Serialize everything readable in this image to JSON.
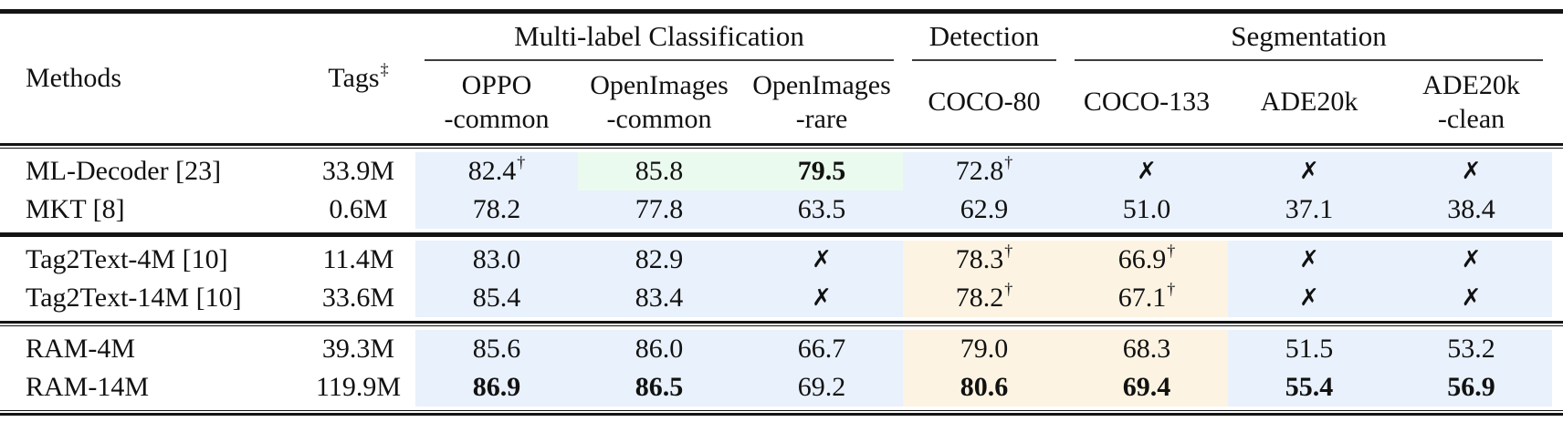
{
  "colors": {
    "highlight_blue": "#e9f1fc",
    "highlight_green": "#ebfaee",
    "highlight_cream": "#fcf3e2",
    "rule": "#141414"
  },
  "header": {
    "methods_label": "Methods",
    "tags_label": "Tags",
    "tags_sup": "‡",
    "groups": [
      {
        "label": "Multi-label Classification",
        "columns": [
          {
            "key": "oppo_common",
            "lines": [
              "OPPO",
              "-common"
            ]
          },
          {
            "key": "openimages_common",
            "lines": [
              "OpenImages",
              "-common"
            ]
          },
          {
            "key": "openimages_rare",
            "lines": [
              "OpenImages",
              "-rare"
            ]
          }
        ]
      },
      {
        "label": "Detection",
        "columns": [
          {
            "key": "coco80",
            "lines": [
              "COCO-80"
            ]
          }
        ]
      },
      {
        "label": "Segmentation",
        "columns": [
          {
            "key": "coco133",
            "lines": [
              "COCO-133"
            ]
          },
          {
            "key": "ade20k",
            "lines": [
              "ADE20k"
            ]
          },
          {
            "key": "ade20k_clean",
            "lines": [
              "ADE20k",
              "-clean"
            ]
          }
        ]
      }
    ]
  },
  "sections": [
    {
      "rows": [
        {
          "method": "ML-Decoder [23]",
          "tags": "33.9M",
          "cells": [
            {
              "v": "82.4",
              "sup": "†",
              "bg": "blue"
            },
            {
              "v": "85.8",
              "bg": "green"
            },
            {
              "v": "79.5",
              "bold": true,
              "bg": "green"
            },
            {
              "v": "72.8",
              "sup": "†",
              "bg": "blue"
            },
            {
              "v": "✗",
              "cross": true,
              "bg": "blue"
            },
            {
              "v": "✗",
              "cross": true,
              "bg": "blue"
            },
            {
              "v": "✗",
              "cross": true,
              "bg": "blue"
            }
          ]
        },
        {
          "method": "MKT [8]",
          "tags": "0.6M",
          "cells": [
            {
              "v": "78.2",
              "bg": "blue"
            },
            {
              "v": "77.8",
              "bg": "blue"
            },
            {
              "v": "63.5",
              "bg": "blue"
            },
            {
              "v": "62.9",
              "bg": "blue"
            },
            {
              "v": "51.0",
              "bg": "blue"
            },
            {
              "v": "37.1",
              "bg": "blue"
            },
            {
              "v": "38.4",
              "bg": "blue"
            }
          ]
        }
      ]
    },
    {
      "rows": [
        {
          "method": "Tag2Text-4M [10]",
          "tags": "11.4M",
          "cells": [
            {
              "v": "83.0",
              "bg": "blue"
            },
            {
              "v": "82.9",
              "bg": "blue"
            },
            {
              "v": "✗",
              "cross": true,
              "bg": "blue"
            },
            {
              "v": "78.3",
              "sup": "†",
              "bg": "cream"
            },
            {
              "v": "66.9",
              "sup": "†",
              "bg": "cream"
            },
            {
              "v": "✗",
              "cross": true,
              "bg": "blue"
            },
            {
              "v": "✗",
              "cross": true,
              "bg": "blue"
            }
          ]
        },
        {
          "method": "Tag2Text-14M [10]",
          "tags": "33.6M",
          "cells": [
            {
              "v": "85.4",
              "bg": "blue"
            },
            {
              "v": "83.4",
              "bg": "blue"
            },
            {
              "v": "✗",
              "cross": true,
              "bg": "blue"
            },
            {
              "v": "78.2",
              "sup": "†",
              "bg": "cream"
            },
            {
              "v": "67.1",
              "sup": "†",
              "bg": "cream"
            },
            {
              "v": "✗",
              "cross": true,
              "bg": "blue"
            },
            {
              "v": "✗",
              "cross": true,
              "bg": "blue"
            }
          ]
        }
      ]
    },
    {
      "rows": [
        {
          "method": "RAM-4M",
          "tags": "39.3M",
          "cells": [
            {
              "v": "85.6",
              "bg": "blue"
            },
            {
              "v": "86.0",
              "bg": "blue"
            },
            {
              "v": "66.7",
              "bg": "blue"
            },
            {
              "v": "79.0",
              "bg": "cream"
            },
            {
              "v": "68.3",
              "bg": "cream"
            },
            {
              "v": "51.5",
              "bg": "blue"
            },
            {
              "v": "53.2",
              "bg": "blue"
            }
          ]
        },
        {
          "method": "RAM-14M",
          "tags": "119.9M",
          "cells": [
            {
              "v": "86.9",
              "bold": true,
              "bg": "blue"
            },
            {
              "v": "86.5",
              "bold": true,
              "bg": "blue"
            },
            {
              "v": "69.2",
              "bg": "blue"
            },
            {
              "v": "80.6",
              "bold": true,
              "bg": "cream"
            },
            {
              "v": "69.4",
              "bold": true,
              "bg": "cream"
            },
            {
              "v": "55.4",
              "bold": true,
              "bg": "blue"
            },
            {
              "v": "56.9",
              "bold": true,
              "bg": "blue"
            }
          ]
        }
      ]
    }
  ]
}
